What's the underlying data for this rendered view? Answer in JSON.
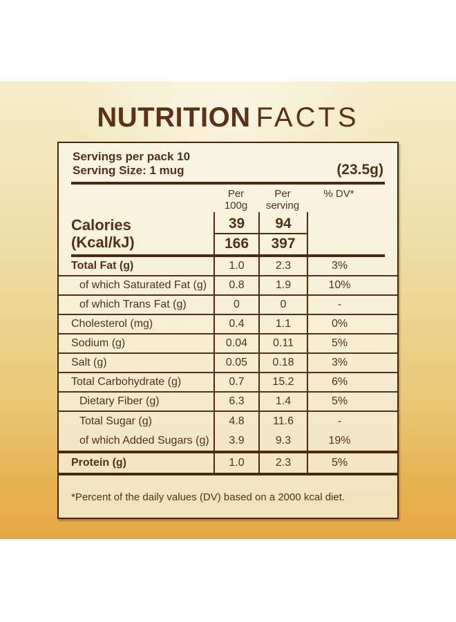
{
  "title": {
    "primary": "NUTRITION",
    "secondary": "FACTS"
  },
  "label": {
    "servings_per_pack": "Servings per pack 10",
    "serving_size": "Serving Size: 1 mug",
    "serving_weight": "(23.5g)",
    "column_headers": {
      "per_100g_line1": "Per",
      "per_100g_line2": "100g",
      "per_serving_line1": "Per",
      "per_serving_line2": "serving",
      "dv": "% DV*"
    },
    "calories": {
      "label_line1": "Calories",
      "label_line2": "(Kcal/kJ)",
      "per_100g": {
        "kcal": "39",
        "kj": "166"
      },
      "per_serving": {
        "kcal": "94",
        "kj": "397"
      }
    },
    "rows": [
      {
        "label": "Total Fat (g)",
        "per_100g": "1.0",
        "per_serving": "2.3",
        "dv": "3%",
        "bold": true,
        "indent": false,
        "divider_below": "thin"
      },
      {
        "label": "of which Saturated Fat (g)",
        "per_100g": "0.8",
        "per_serving": "1.9",
        "dv": "10%",
        "bold": false,
        "indent": true,
        "divider_below": "thin"
      },
      {
        "label": "of which Trans Fat (g)",
        "per_100g": "0",
        "per_serving": "0",
        "dv": "-",
        "bold": false,
        "indent": true,
        "divider_below": "thin"
      },
      {
        "label": "Cholesterol (mg)",
        "per_100g": "0.4",
        "per_serving": "1.1",
        "dv": "0%",
        "bold": false,
        "indent": false,
        "divider_below": "thin"
      },
      {
        "label": "Sodium (g)",
        "per_100g": "0.04",
        "per_serving": "0.11",
        "dv": "5%",
        "bold": false,
        "indent": false,
        "divider_below": "thin"
      },
      {
        "label": "Salt (g)",
        "per_100g": "0.05",
        "per_serving": "0.18",
        "dv": "3%",
        "bold": false,
        "indent": false,
        "divider_below": "thin"
      },
      {
        "label": "Total Carbohydrate (g)",
        "per_100g": "0.7",
        "per_serving": "15.2",
        "dv": "6%",
        "bold": false,
        "indent": false,
        "divider_below": "thin"
      },
      {
        "label": "Dietary Fiber (g)",
        "per_100g": "6.3",
        "per_serving": "1.4",
        "dv": "5%",
        "bold": false,
        "indent": true,
        "divider_below": "thin"
      },
      {
        "label": "Total Sugar (g)",
        "per_100g": "4.8",
        "per_serving": "11.6",
        "dv": "-",
        "bold": false,
        "indent": true,
        "divider_below": "none"
      },
      {
        "label": "of which Added Sugars (g)",
        "per_100g": "3.9",
        "per_serving": "9.3",
        "dv": "19%",
        "bold": false,
        "indent": true,
        "divider_below": "thick"
      },
      {
        "label": "Protein (g)",
        "per_100g": "1.0",
        "per_serving": "2.3",
        "dv": "5%",
        "bold": true,
        "indent": false,
        "divider_below": "thick"
      }
    ],
    "footnote": "*Percent of the daily values (DV) based on a 2000 kcal diet."
  },
  "colors": {
    "brown_rule": "#4a2910",
    "brown_text": "#53301a",
    "panel_bg_top": "#faf5e3",
    "panel_bg_bottom": "#f2e2bd",
    "background_top": "#f5ecca",
    "background_bottom": "#e5a843",
    "page_background": "#ffffff"
  }
}
